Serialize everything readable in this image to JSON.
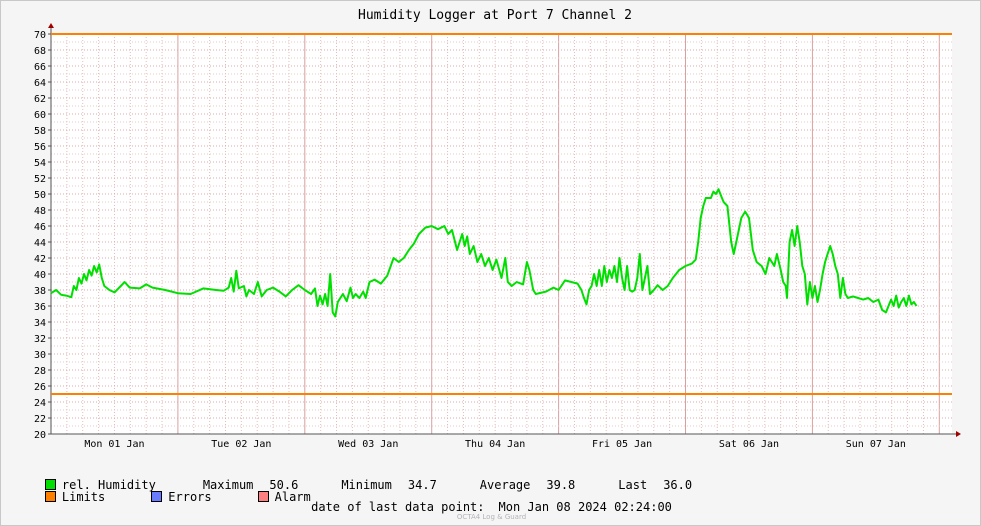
{
  "chart_data": {
    "type": "line",
    "title": "Humidity Logger at Port 7 Channel 2",
    "ylim": [
      20,
      70
    ],
    "y_ticks": [
      20,
      22,
      24,
      26,
      28,
      30,
      32,
      34,
      36,
      38,
      40,
      42,
      44,
      46,
      48,
      50,
      52,
      54,
      56,
      58,
      60,
      62,
      64,
      66,
      68,
      70
    ],
    "x_tick_labels": [
      "Mon 01 Jan",
      "Tue 02 Jan",
      "Wed 03 Jan",
      "Thu 04 Jan",
      "Fri 05 Jan",
      "Sat 06 Jan",
      "Sun 07 Jan"
    ],
    "x_range_days": [
      0,
      7.1
    ],
    "grid": true,
    "limits": [
      25,
      70
    ],
    "series": [
      {
        "name": "rel. Humidity",
        "color": "#00e000",
        "points": [
          [
            0.0,
            37.6
          ],
          [
            0.04,
            38.0
          ],
          [
            0.08,
            37.4
          ],
          [
            0.12,
            37.3
          ],
          [
            0.16,
            37.1
          ],
          [
            0.18,
            38.5
          ],
          [
            0.2,
            38.0
          ],
          [
            0.22,
            39.5
          ],
          [
            0.24,
            38.8
          ],
          [
            0.26,
            40.0
          ],
          [
            0.28,
            39.2
          ],
          [
            0.3,
            40.5
          ],
          [
            0.32,
            39.8
          ],
          [
            0.34,
            41.0
          ],
          [
            0.36,
            40.2
          ],
          [
            0.38,
            41.2
          ],
          [
            0.4,
            39.5
          ],
          [
            0.42,
            38.5
          ],
          [
            0.46,
            38.0
          ],
          [
            0.5,
            37.7
          ],
          [
            0.55,
            38.5
          ],
          [
            0.58,
            39.0
          ],
          [
            0.62,
            38.3
          ],
          [
            0.7,
            38.2
          ],
          [
            0.75,
            38.7
          ],
          [
            0.8,
            38.3
          ],
          [
            0.9,
            38.0
          ],
          [
            1.0,
            37.6
          ],
          [
            1.1,
            37.5
          ],
          [
            1.2,
            38.2
          ],
          [
            1.3,
            38.0
          ],
          [
            1.36,
            37.9
          ],
          [
            1.4,
            38.3
          ],
          [
            1.42,
            39.5
          ],
          [
            1.44,
            37.8
          ],
          [
            1.46,
            40.4
          ],
          [
            1.48,
            38.2
          ],
          [
            1.52,
            38.5
          ],
          [
            1.54,
            37.2
          ],
          [
            1.56,
            38.0
          ],
          [
            1.6,
            37.5
          ],
          [
            1.63,
            39.0
          ],
          [
            1.66,
            37.2
          ],
          [
            1.7,
            38.0
          ],
          [
            1.75,
            38.3
          ],
          [
            1.8,
            37.8
          ],
          [
            1.85,
            37.2
          ],
          [
            1.9,
            38.0
          ],
          [
            1.95,
            38.6
          ],
          [
            2.0,
            38.0
          ],
          [
            2.05,
            37.5
          ],
          [
            2.08,
            38.2
          ],
          [
            2.1,
            36.0
          ],
          [
            2.12,
            37.3
          ],
          [
            2.14,
            36.2
          ],
          [
            2.16,
            37.5
          ],
          [
            2.18,
            36.0
          ],
          [
            2.2,
            40.0
          ],
          [
            2.22,
            35.2
          ],
          [
            2.24,
            34.7
          ],
          [
            2.26,
            36.5
          ],
          [
            2.3,
            37.5
          ],
          [
            2.33,
            36.6
          ],
          [
            2.36,
            38.3
          ],
          [
            2.38,
            37.0
          ],
          [
            2.4,
            37.5
          ],
          [
            2.43,
            37.0
          ],
          [
            2.46,
            37.8
          ],
          [
            2.48,
            37.0
          ],
          [
            2.51,
            39.0
          ],
          [
            2.55,
            39.3
          ],
          [
            2.6,
            38.8
          ],
          [
            2.65,
            39.8
          ],
          [
            2.7,
            42.0
          ],
          [
            2.74,
            41.5
          ],
          [
            2.78,
            42.0
          ],
          [
            2.82,
            43.0
          ],
          [
            2.86,
            43.8
          ],
          [
            2.9,
            45.0
          ],
          [
            2.95,
            45.8
          ],
          [
            3.0,
            46.0
          ],
          [
            3.05,
            45.6
          ],
          [
            3.1,
            46.0
          ],
          [
            3.13,
            45.0
          ],
          [
            3.16,
            45.5
          ],
          [
            3.2,
            43.0
          ],
          [
            3.24,
            45.0
          ],
          [
            3.26,
            43.5
          ],
          [
            3.28,
            44.7
          ],
          [
            3.3,
            42.5
          ],
          [
            3.33,
            43.5
          ],
          [
            3.36,
            41.5
          ],
          [
            3.39,
            42.5
          ],
          [
            3.42,
            41.0
          ],
          [
            3.45,
            42.0
          ],
          [
            3.48,
            40.5
          ],
          [
            3.51,
            41.8
          ],
          [
            3.55,
            39.5
          ],
          [
            3.58,
            42.0
          ],
          [
            3.6,
            39.0
          ],
          [
            3.63,
            38.5
          ],
          [
            3.67,
            39.0
          ],
          [
            3.72,
            38.7
          ],
          [
            3.75,
            41.5
          ],
          [
            3.77,
            40.5
          ],
          [
            3.8,
            38.0
          ],
          [
            3.82,
            37.5
          ],
          [
            3.9,
            37.8
          ],
          [
            3.96,
            38.3
          ],
          [
            4.0,
            38.0
          ],
          [
            4.05,
            39.2
          ],
          [
            4.1,
            39.0
          ],
          [
            4.15,
            38.8
          ],
          [
            4.18,
            38.0
          ],
          [
            4.2,
            37.0
          ],
          [
            4.22,
            36.2
          ],
          [
            4.24,
            38.0
          ],
          [
            4.26,
            38.5
          ],
          [
            4.28,
            40.0
          ],
          [
            4.3,
            38.5
          ],
          [
            4.32,
            40.5
          ],
          [
            4.34,
            38.5
          ],
          [
            4.36,
            41.0
          ],
          [
            4.38,
            39.0
          ],
          [
            4.4,
            40.5
          ],
          [
            4.42,
            39.5
          ],
          [
            4.44,
            41.0
          ],
          [
            4.46,
            39.0
          ],
          [
            4.48,
            42.0
          ],
          [
            4.5,
            39.5
          ],
          [
            4.52,
            38.0
          ],
          [
            4.54,
            41.0
          ],
          [
            4.56,
            38.0
          ],
          [
            4.58,
            37.8
          ],
          [
            4.6,
            38.0
          ],
          [
            4.62,
            39.5
          ],
          [
            4.64,
            42.5
          ],
          [
            4.66,
            38.0
          ],
          [
            4.68,
            39.5
          ],
          [
            4.7,
            41.0
          ],
          [
            4.72,
            37.5
          ],
          [
            4.75,
            38.0
          ],
          [
            4.78,
            38.6
          ],
          [
            4.82,
            38.0
          ],
          [
            4.86,
            38.5
          ],
          [
            4.9,
            39.5
          ],
          [
            4.95,
            40.5
          ],
          [
            5.0,
            41.0
          ],
          [
            5.05,
            41.3
          ],
          [
            5.08,
            41.8
          ],
          [
            5.1,
            44.0
          ],
          [
            5.12,
            47.0
          ],
          [
            5.14,
            48.5
          ],
          [
            5.16,
            49.5
          ],
          [
            5.2,
            49.5
          ],
          [
            5.22,
            50.3
          ],
          [
            5.24,
            50.0
          ],
          [
            5.26,
            50.6
          ],
          [
            5.28,
            49.8
          ],
          [
            5.3,
            49.0
          ],
          [
            5.33,
            48.5
          ],
          [
            5.36,
            44.0
          ],
          [
            5.38,
            42.5
          ],
          [
            5.4,
            44.0
          ],
          [
            5.44,
            47.0
          ],
          [
            5.47,
            47.8
          ],
          [
            5.5,
            47.0
          ],
          [
            5.53,
            43.0
          ],
          [
            5.56,
            41.5
          ],
          [
            5.6,
            41.0
          ],
          [
            5.63,
            40.0
          ],
          [
            5.66,
            42.0
          ],
          [
            5.7,
            41.0
          ],
          [
            5.72,
            42.5
          ],
          [
            5.75,
            40.5
          ],
          [
            5.77,
            39.0
          ],
          [
            5.79,
            38.5
          ],
          [
            5.8,
            37.0
          ],
          [
            5.82,
            44.0
          ],
          [
            5.84,
            45.5
          ],
          [
            5.86,
            43.5
          ],
          [
            5.88,
            46.0
          ],
          [
            5.9,
            44.0
          ],
          [
            5.92,
            41.0
          ],
          [
            5.94,
            40.0
          ],
          [
            5.96,
            36.2
          ],
          [
            5.98,
            39.0
          ],
          [
            6.0,
            37.0
          ],
          [
            6.02,
            38.5
          ],
          [
            6.04,
            36.5
          ],
          [
            6.06,
            38.0
          ],
          [
            6.08,
            40.0
          ],
          [
            6.1,
            41.5
          ],
          [
            6.12,
            42.5
          ],
          [
            6.14,
            43.5
          ],
          [
            6.16,
            42.5
          ],
          [
            6.18,
            41.0
          ],
          [
            6.2,
            40.0
          ],
          [
            6.22,
            37.0
          ],
          [
            6.24,
            39.5
          ],
          [
            6.26,
            37.5
          ],
          [
            6.28,
            37.0
          ],
          [
            6.32,
            37.2
          ],
          [
            6.36,
            37.0
          ],
          [
            6.4,
            36.8
          ],
          [
            6.44,
            37.0
          ],
          [
            6.48,
            36.5
          ],
          [
            6.52,
            36.8
          ],
          [
            6.55,
            35.5
          ],
          [
            6.58,
            35.2
          ],
          [
            6.6,
            36.0
          ],
          [
            6.62,
            36.8
          ],
          [
            6.64,
            36.0
          ],
          [
            6.66,
            37.3
          ],
          [
            6.68,
            35.8
          ],
          [
            6.7,
            36.5
          ],
          [
            6.72,
            37.0
          ],
          [
            6.74,
            36.0
          ],
          [
            6.76,
            37.3
          ],
          [
            6.78,
            36.2
          ],
          [
            6.8,
            36.5
          ],
          [
            6.82,
            36.0
          ]
        ]
      }
    ]
  },
  "legend": {
    "series_label": "rel. Humidity",
    "series_color": "#00e000",
    "limits_label": "Limits",
    "limits_color": "#ff8000",
    "errors_label": "Errors",
    "errors_color": "#6a7bff",
    "alarm_label": "Alarm",
    "alarm_color": "#ff8080"
  },
  "stats": {
    "max_label": "Maximum",
    "max_value": "50.6",
    "min_label": "Minimum",
    "min_value": "34.7",
    "avg_label": "Average",
    "avg_value": "39.8",
    "last_label": "Last",
    "last_value": "36.0"
  },
  "footer": {
    "label": "date of last data point:",
    "value": "Mon Jan 08 2024 02:24:00"
  },
  "watermark": "OCTA4 Log & Guard"
}
